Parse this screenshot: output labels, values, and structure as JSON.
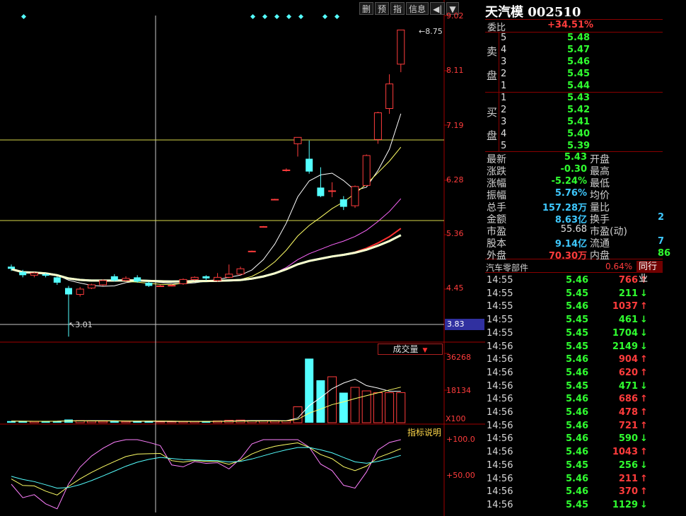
{
  "toolbar": [
    "删",
    "预",
    "指",
    "信息",
    "◀|",
    "▼"
  ],
  "price_axis": [
    "9.02",
    "8.11",
    "7.19",
    "6.28",
    "5.36",
    "4.45"
  ],
  "current_price": "3.83",
  "high_label": "8.75",
  "low_label": "3.01",
  "volume_btn": "成交量",
  "volume_axis": [
    "36268",
    "18134"
  ],
  "volume_unit": "X100",
  "indicator_btn": "指标说明",
  "indicator_axis": [
    "+100.0",
    "+50.00"
  ],
  "stock": {
    "name": "天汽模",
    "code": "002510"
  },
  "weibi": {
    "label": "委比",
    "value": "+34.51%"
  },
  "sell": {
    "label1": "卖",
    "label2": "盘",
    "levels": [
      {
        "n": "5",
        "price": "5.48"
      },
      {
        "n": "4",
        "price": "5.47"
      },
      {
        "n": "3",
        "price": "5.46"
      },
      {
        "n": "2",
        "price": "5.45"
      },
      {
        "n": "1",
        "price": "5.44"
      }
    ]
  },
  "buy": {
    "label1": "买",
    "label2": "盘",
    "levels": [
      {
        "n": "1",
        "price": "5.43"
      },
      {
        "n": "2",
        "price": "5.42"
      },
      {
        "n": "3",
        "price": "5.41"
      },
      {
        "n": "4",
        "price": "5.40"
      },
      {
        "n": "5",
        "price": "5.39"
      }
    ]
  },
  "quote": [
    {
      "l": "最新",
      "v": "5.43",
      "c": "num",
      "r": "开盘"
    },
    {
      "l": "涨跌",
      "v": "-0.30",
      "c": "num",
      "r": "最高"
    },
    {
      "l": "涨幅",
      "v": "-5.24%",
      "c": "num",
      "r": "最低"
    },
    {
      "l": "振幅",
      "v": "5.76%",
      "c": "cyan",
      "r": "均价"
    },
    {
      "l": "总手",
      "v": "157.28万",
      "c": "cyan",
      "r": "量比"
    },
    {
      "l": "金额",
      "v": "8.63亿",
      "c": "cyan",
      "r": "换手"
    },
    {
      "l": "市盈",
      "v": "55.68",
      "c": "white",
      "r": "市盈(动)"
    },
    {
      "l": "股本",
      "v": "9.14亿",
      "c": "cyan",
      "r": "流通"
    },
    {
      "l": "外盘",
      "v": "70.30万",
      "c": "red",
      "r": "内盘"
    }
  ],
  "quote_right_vals": [
    "",
    "",
    "",
    "",
    "",
    "2",
    "",
    "7",
    "86"
  ],
  "sector": {
    "name": "汽车零部件",
    "pct": "0.64%",
    "tab": "同行业"
  },
  "ticks": [
    {
      "t": "14:55",
      "p": "5.46",
      "v": "766",
      "d": "up"
    },
    {
      "t": "14:55",
      "p": "5.45",
      "v": "211",
      "d": "dn"
    },
    {
      "t": "14:55",
      "p": "5.46",
      "v": "1037",
      "d": "up"
    },
    {
      "t": "14:55",
      "p": "5.45",
      "v": "461",
      "d": "dn"
    },
    {
      "t": "14:55",
      "p": "5.45",
      "v": "1704",
      "d": "dn"
    },
    {
      "t": "14:56",
      "p": "5.45",
      "v": "2149",
      "d": "dn"
    },
    {
      "t": "14:56",
      "p": "5.46",
      "v": "904",
      "d": "up"
    },
    {
      "t": "14:56",
      "p": "5.46",
      "v": "620",
      "d": "up"
    },
    {
      "t": "14:56",
      "p": "5.45",
      "v": "471",
      "d": "dn"
    },
    {
      "t": "14:56",
      "p": "5.46",
      "v": "686",
      "d": "up"
    },
    {
      "t": "14:56",
      "p": "5.46",
      "v": "478",
      "d": "up"
    },
    {
      "t": "14:56",
      "p": "5.46",
      "v": "721",
      "d": "up"
    },
    {
      "t": "14:56",
      "p": "5.46",
      "v": "590",
      "d": "dn"
    },
    {
      "t": "14:56",
      "p": "5.46",
      "v": "1043",
      "d": "up"
    },
    {
      "t": "14:56",
      "p": "5.45",
      "v": "256",
      "d": "dn"
    },
    {
      "t": "14:56",
      "p": "5.46",
      "v": "211",
      "d": "up"
    },
    {
      "t": "14:56",
      "p": "5.46",
      "v": "370",
      "d": "up"
    },
    {
      "t": "14:56",
      "p": "5.45",
      "v": "1129",
      "d": "dn"
    }
  ],
  "colors": {
    "up": "#ff3c3c",
    "down": "#54ffff",
    "grid": "#8a0000",
    "hline": "#d8d84a"
  },
  "chart_data": {
    "type": "candlestick",
    "ylim": [
      3.0,
      9.02
    ],
    "candles": [
      {
        "o": 4.32,
        "c": 4.28,
        "h": 4.36,
        "l": 4.24
      },
      {
        "o": 4.22,
        "c": 4.16,
        "h": 4.26,
        "l": 4.12
      },
      {
        "o": 4.16,
        "c": 4.2,
        "h": 4.22,
        "l": 4.12
      },
      {
        "o": 4.18,
        "c": 4.15,
        "h": 4.2,
        "l": 4.12
      },
      {
        "o": 4.12,
        "c": 4.02,
        "h": 4.14,
        "l": 3.98
      },
      {
        "o": 3.92,
        "c": 3.8,
        "h": 3.96,
        "l": 3.01
      },
      {
        "o": 3.8,
        "c": 3.9,
        "h": 3.94,
        "l": 3.76
      },
      {
        "o": 3.92,
        "c": 3.98,
        "h": 4.0,
        "l": 3.9
      },
      {
        "o": 3.98,
        "c": 4.06,
        "h": 4.08,
        "l": 3.96
      },
      {
        "o": 4.14,
        "c": 4.06,
        "h": 4.18,
        "l": 4.04
      },
      {
        "o": 4.06,
        "c": 4.1,
        "h": 4.14,
        "l": 4.04
      },
      {
        "o": 4.12,
        "c": 4.04,
        "h": 4.16,
        "l": 4.02
      },
      {
        "o": 4.02,
        "c": 3.96,
        "h": 4.04,
        "l": 3.94
      },
      {
        "o": 3.96,
        "c": 3.96,
        "h": 3.98,
        "l": 3.94
      },
      {
        "o": 3.97,
        "c": 3.97,
        "h": 3.99,
        "l": 3.95
      },
      {
        "o": 4.0,
        "c": 4.08,
        "h": 4.1,
        "l": 3.98
      },
      {
        "o": 4.08,
        "c": 4.12,
        "h": 4.14,
        "l": 4.06
      },
      {
        "o": 4.14,
        "c": 4.1,
        "h": 4.16,
        "l": 4.06
      },
      {
        "o": 4.06,
        "c": 4.12,
        "h": 4.2,
        "l": 4.04
      },
      {
        "o": 4.12,
        "c": 4.18,
        "h": 4.36,
        "l": 4.1
      },
      {
        "o": 4.18,
        "c": 4.28,
        "h": 4.32,
        "l": 4.16
      },
      {
        "o": 4.61,
        "c": 4.61,
        "h": 4.62,
        "l": 4.6
      },
      {
        "o": 5.07,
        "c": 5.07,
        "h": 5.08,
        "l": 5.06
      },
      {
        "o": 5.58,
        "c": 5.58,
        "h": 5.59,
        "l": 5.57
      },
      {
        "o": 6.13,
        "c": 6.13,
        "h": 6.16,
        "l": 6.1
      },
      {
        "o": 6.62,
        "c": 6.74,
        "h": 6.74,
        "l": 6.38
      },
      {
        "o": 6.34,
        "c": 6.1,
        "h": 6.68,
        "l": 6.06
      },
      {
        "o": 5.8,
        "c": 5.64,
        "h": 6.18,
        "l": 5.62
      },
      {
        "o": 5.74,
        "c": 5.74,
        "h": 5.9,
        "l": 5.62
      },
      {
        "o": 5.58,
        "c": 5.44,
        "h": 5.64,
        "l": 5.38
      },
      {
        "o": 5.46,
        "c": 5.82,
        "h": 5.84,
        "l": 5.42
      },
      {
        "o": 5.84,
        "c": 6.4,
        "h": 6.42,
        "l": 5.84
      },
      {
        "o": 6.7,
        "c": 7.2,
        "h": 7.22,
        "l": 6.62
      },
      {
        "o": 7.28,
        "c": 7.74,
        "h": 7.92,
        "l": 7.18
      },
      {
        "o": 8.11,
        "c": 8.75,
        "h": 8.75,
        "l": 7.96
      }
    ],
    "volume_ylim": [
      0,
      38000
    ],
    "volume": [
      900,
      800,
      700,
      900,
      1000,
      1800,
      1200,
      900,
      800,
      900,
      700,
      800,
      700,
      600,
      600,
      700,
      800,
      900,
      1000,
      1400,
      1500,
      1200,
      1000,
      900,
      1000,
      9000,
      36268,
      24000,
      26000,
      17000,
      20000,
      18000,
      17000,
      17000,
      17000
    ],
    "indicator_ylim": [
      0,
      115
    ]
  }
}
